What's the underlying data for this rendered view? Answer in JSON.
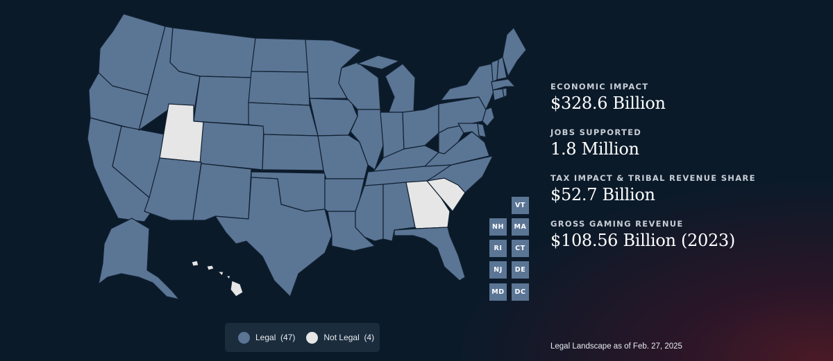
{
  "map": {
    "states_legal": [
      "WA",
      "OR",
      "CA",
      "NV",
      "ID",
      "MT",
      "WY",
      "CO",
      "AZ",
      "NM",
      "ND",
      "SD",
      "NE",
      "KS",
      "OK",
      "TX",
      "MN",
      "IA",
      "MO",
      "AR",
      "LA",
      "WI",
      "IL",
      "MI",
      "IN",
      "OH",
      "KY",
      "TN",
      "MS",
      "AL",
      "FL",
      "NC",
      "VA",
      "WV",
      "PA",
      "NY",
      "ME",
      "AK"
    ],
    "states_not_legal": [
      "UT",
      "GA",
      "SC",
      "HI"
    ],
    "colors": {
      "legal": "#5b7595",
      "not_legal": "#e6e6e6",
      "border": "#102030"
    },
    "small_state_tiles": [
      "VT",
      "NH",
      "MA",
      "RI",
      "CT",
      "NJ",
      "DE",
      "MD",
      "DC"
    ]
  },
  "stats": [
    {
      "label": "ECONOMIC IMPACT",
      "value": "$328.6 Billion"
    },
    {
      "label": "JOBS SUPPORTED",
      "value": "1.8 Million"
    },
    {
      "label": "TAX IMPACT & TRIBAL REVENUE SHARE",
      "value": "$52.7 Billion"
    },
    {
      "label": "GROSS GAMING REVENUE",
      "value": "$108.56 Billion (2023)"
    }
  ],
  "legend": {
    "legal_label": "Legal",
    "legal_count": "(47)",
    "not_legal_label": "Not Legal",
    "not_legal_count": "(4)"
  },
  "footnote": "Legal Landscape as of Feb. 27, 2025"
}
